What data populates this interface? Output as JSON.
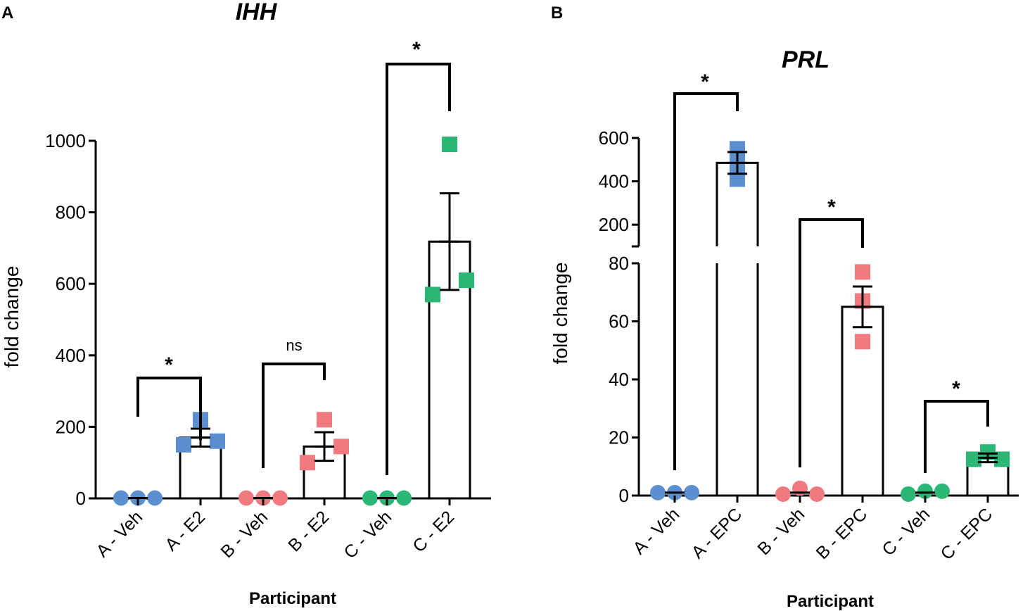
{
  "chart_data": [
    {
      "panel": "A",
      "type": "bar",
      "title": "IHH",
      "xlabel": "Participant",
      "ylabel": "fold change",
      "ylim": [
        0,
        1000
      ],
      "yticks": [
        0,
        200,
        400,
        600,
        800,
        1000
      ],
      "categories": [
        "A - Veh",
        "A - E2",
        "B - Veh",
        "B - E2",
        "C - Veh",
        "C - E2"
      ],
      "colors": [
        "#5b8fd0",
        "#5b8fd0",
        "#f07a80",
        "#f07a80",
        "#2bb673",
        "#2bb673"
      ],
      "markers": [
        "circle",
        "square",
        "circle",
        "square",
        "circle",
        "square"
      ],
      "values": [
        1,
        170,
        1,
        145,
        1,
        718
      ],
      "sem": [
        0,
        25,
        0,
        40,
        0,
        135
      ],
      "points": [
        [
          1,
          1,
          1
        ],
        [
          150,
          220,
          160
        ],
        [
          1,
          1,
          1
        ],
        [
          100,
          220,
          145
        ],
        [
          1,
          1,
          1
        ],
        [
          570,
          990,
          610
        ]
      ],
      "comparisons": [
        {
          "from": 0,
          "to": 1,
          "label": "*"
        },
        {
          "from": 2,
          "to": 3,
          "label": "ns"
        },
        {
          "from": 4,
          "to": 5,
          "label": "*"
        }
      ]
    },
    {
      "panel": "B",
      "type": "bar",
      "title": "PRL",
      "xlabel": "Participant",
      "ylabel": "fold change",
      "ylim_lower": [
        0,
        80
      ],
      "ylim_upper": [
        100,
        600
      ],
      "yticks_lower": [
        0,
        20,
        40,
        60,
        80
      ],
      "yticks_upper": [
        200,
        400,
        600
      ],
      "categories": [
        "A - Veh",
        "A - EPC",
        "B - Veh",
        "B - EPC",
        "C - Veh",
        "C - EPC"
      ],
      "colors": [
        "#5b8fd0",
        "#5b8fd0",
        "#f07a80",
        "#f07a80",
        "#2bb673",
        "#2bb673"
      ],
      "markers": [
        "circle",
        "square",
        "circle",
        "square",
        "circle",
        "square"
      ],
      "values": [
        1,
        485,
        1,
        65,
        1,
        13
      ],
      "sem": [
        0,
        50,
        0,
        7,
        0,
        1.5
      ],
      "points": [
        [
          1,
          1,
          1
        ],
        [
          550,
          480,
          410
        ],
        [
          0.5,
          2.5,
          0.5
        ],
        [
          77,
          67,
          53
        ],
        [
          0.5,
          1.5,
          1.5
        ],
        [
          12.5,
          15,
          12.5
        ]
      ],
      "comparisons": [
        {
          "from": 0,
          "to": 1,
          "label": "*"
        },
        {
          "from": 2,
          "to": 3,
          "label": "*"
        },
        {
          "from": 4,
          "to": 5,
          "label": "*"
        }
      ]
    }
  ],
  "panels": [
    "A",
    "B"
  ]
}
